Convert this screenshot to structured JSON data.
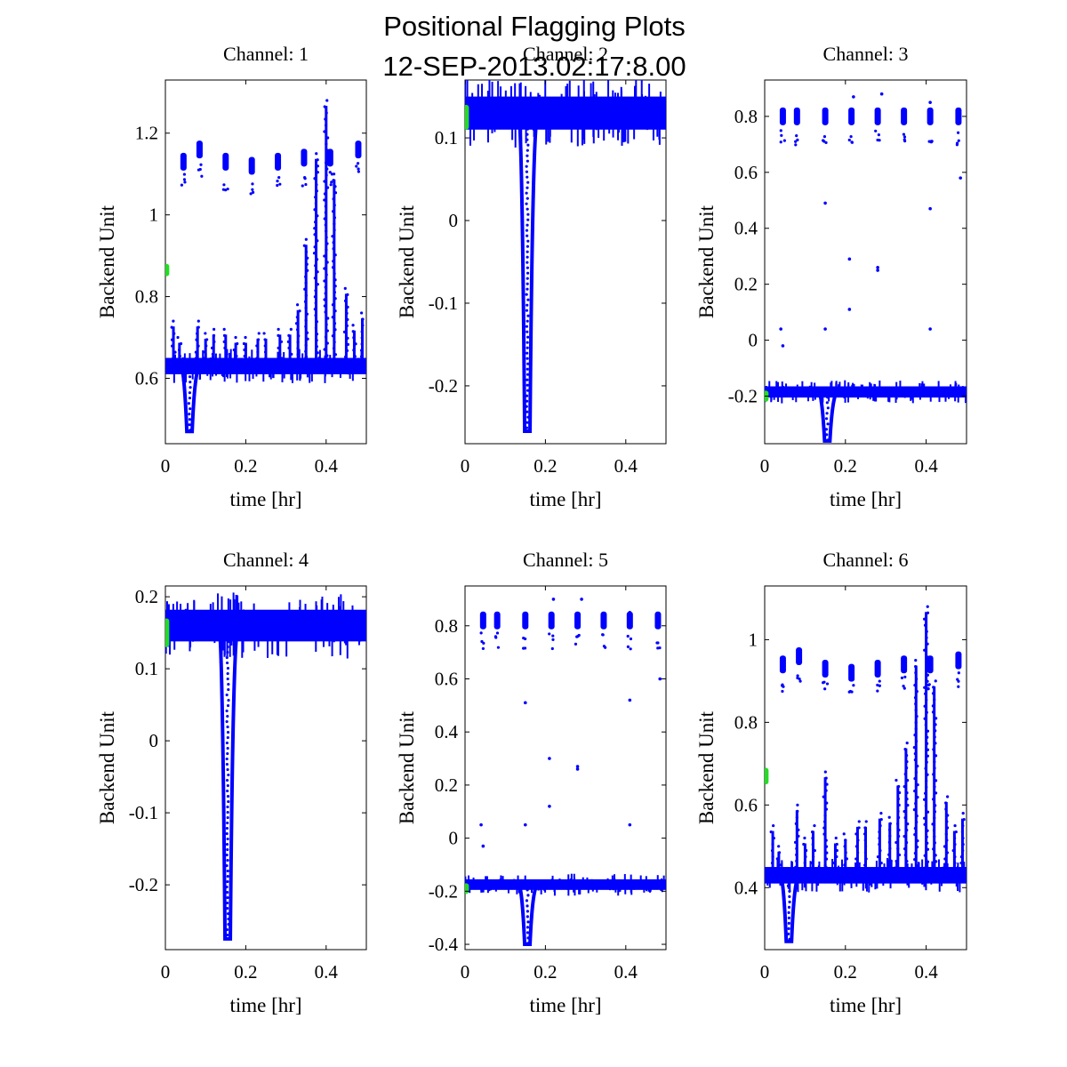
{
  "figure": {
    "title_line1": "Positional Flagging Plots",
    "title_line2": "12-SEP-2013.02:17:8.00"
  },
  "colors": {
    "data": "#0000ff",
    "flag": "#22dd22",
    "axes": "#000000",
    "background": "#ffffff"
  },
  "chart_data": [
    {
      "type": "scatter",
      "title": "Channel: 1",
      "xlabel": "time [hr]",
      "ylabel": "Backend Unit",
      "xlim": [
        0,
        0.5
      ],
      "ylim": [
        0.44,
        1.33
      ],
      "xticks": [
        0,
        0.2,
        0.4
      ],
      "xtick_labels": [
        "0",
        "0.2",
        "0.4"
      ],
      "yticks": [
        0.6,
        0.8,
        1.0,
        1.2
      ],
      "ytick_labels": [
        "0.6",
        "0.8",
        "1",
        "1.2"
      ],
      "baseline": 0.63,
      "baseline_spread": 0.02,
      "dip": {
        "x": 0.06,
        "y": 0.47
      },
      "upper_clusters": {
        "x": [
          0.045,
          0.085,
          0.15,
          0.215,
          0.28,
          0.345,
          0.41,
          0.48
        ],
        "y": [
          1.13,
          1.16,
          1.13,
          1.12,
          1.13,
          1.14,
          1.14,
          1.16
        ]
      },
      "spikes": [
        {
          "x": 0.02,
          "top": 0.74
        },
        {
          "x": 0.035,
          "top": 0.7
        },
        {
          "x": 0.08,
          "top": 0.74
        },
        {
          "x": 0.1,
          "top": 0.71
        },
        {
          "x": 0.12,
          "top": 0.72
        },
        {
          "x": 0.15,
          "top": 0.72
        },
        {
          "x": 0.175,
          "top": 0.7
        },
        {
          "x": 0.2,
          "top": 0.7
        },
        {
          "x": 0.23,
          "top": 0.71
        },
        {
          "x": 0.25,
          "top": 0.71
        },
        {
          "x": 0.285,
          "top": 0.72
        },
        {
          "x": 0.31,
          "top": 0.72
        },
        {
          "x": 0.33,
          "top": 0.78
        },
        {
          "x": 0.35,
          "top": 0.94
        },
        {
          "x": 0.375,
          "top": 1.15
        },
        {
          "x": 0.4,
          "top": 1.28
        },
        {
          "x": 0.42,
          "top": 1.1
        },
        {
          "x": 0.45,
          "top": 0.82
        },
        {
          "x": 0.47,
          "top": 0.73
        },
        {
          "x": 0.49,
          "top": 0.76
        }
      ],
      "flagged": {
        "x": 0.003,
        "y": [
          0.85,
          0.88
        ]
      }
    },
    {
      "type": "scatter",
      "title": "Channel: 2",
      "xlabel": "time [hr]",
      "ylabel": "Backend Unit",
      "xlim": [
        0,
        0.5
      ],
      "ylim": [
        -0.27,
        0.17
      ],
      "xticks": [
        0,
        0.2,
        0.4
      ],
      "xtick_labels": [
        "0",
        "0.2",
        "0.4"
      ],
      "yticks": [
        -0.2,
        -0.1,
        0,
        0.1
      ],
      "ytick_labels": [
        "-0.2",
        "-0.1",
        "0",
        "0.1"
      ],
      "baseline": 0.13,
      "baseline_spread": 0.02,
      "dip": {
        "x": 0.155,
        "y": -0.255
      },
      "upper_clusters": {
        "x": [],
        "y": []
      },
      "spikes": [],
      "flagged": {
        "x": 0.003,
        "y": [
          0.11,
          0.14
        ]
      }
    },
    {
      "type": "scatter",
      "title": "Channel: 3",
      "xlabel": "time [hr]",
      "ylabel": "Backend Unit",
      "xlim": [
        0,
        0.5
      ],
      "ylim": [
        -0.37,
        0.93
      ],
      "xticks": [
        0,
        0.2,
        0.4
      ],
      "xtick_labels": [
        "0",
        "0.2",
        "0.4"
      ],
      "yticks": [
        -0.2,
        0,
        0.2,
        0.4,
        0.6,
        0.8
      ],
      "ytick_labels": [
        "-0.2",
        "0",
        "0.2",
        "0.4",
        "0.6",
        "0.8"
      ],
      "baseline": -0.185,
      "baseline_spread": 0.02,
      "dip": {
        "x": 0.155,
        "y": -0.36
      },
      "upper_clusters": {
        "x": [
          0.045,
          0.08,
          0.15,
          0.215,
          0.28,
          0.345,
          0.41,
          0.48
        ],
        "y": [
          0.8,
          0.8,
          0.8,
          0.8,
          0.8,
          0.8,
          0.8,
          0.8
        ]
      },
      "spikes": [],
      "scatter_points": [
        [
          0.04,
          0.04
        ],
        [
          0.045,
          -0.02
        ],
        [
          0.15,
          0.49
        ],
        [
          0.15,
          0.04
        ],
        [
          0.21,
          0.29
        ],
        [
          0.21,
          0.11
        ],
        [
          0.28,
          0.25
        ],
        [
          0.28,
          0.26
        ],
        [
          0.41,
          0.47
        ],
        [
          0.41,
          0.04
        ],
        [
          0.485,
          0.58
        ],
        [
          0.22,
          0.87
        ],
        [
          0.29,
          0.88
        ],
        [
          0.41,
          0.85
        ]
      ],
      "flagged": {
        "x": 0.003,
        "y": [
          -0.22,
          -0.18
        ]
      }
    },
    {
      "type": "scatter",
      "title": "Channel: 4",
      "xlabel": "time [hr]",
      "ylabel": "Backend Unit",
      "xlim": [
        0,
        0.5
      ],
      "ylim": [
        -0.29,
        0.215
      ],
      "xticks": [
        0,
        0.2,
        0.4
      ],
      "xtick_labels": [
        "0",
        "0.2",
        "0.4"
      ],
      "yticks": [
        -0.2,
        -0.1,
        0,
        0.1,
        0.2
      ],
      "ytick_labels": [
        "-0.2",
        "-0.1",
        "0",
        "0.1",
        "0.2"
      ],
      "baseline": 0.16,
      "baseline_spread": 0.022,
      "dip": {
        "x": 0.155,
        "y": -0.275
      },
      "upper_clusters": {
        "x": [],
        "y": []
      },
      "spikes": [],
      "flagged": {
        "x": 0.003,
        "y": [
          0.13,
          0.17
        ]
      }
    },
    {
      "type": "scatter",
      "title": "Channel: 5",
      "xlabel": "time [hr]",
      "ylabel": "Backend Unit",
      "xlim": [
        0,
        0.5
      ],
      "ylim": [
        -0.42,
        0.95
      ],
      "xticks": [
        0,
        0.2,
        0.4
      ],
      "xtick_labels": [
        "0",
        "0.2",
        "0.4"
      ],
      "yticks": [
        -0.4,
        -0.2,
        0,
        0.2,
        0.4,
        0.6,
        0.8
      ],
      "ytick_labels": [
        "-0.4",
        "-0.2",
        "0",
        "0.2",
        "0.4",
        "0.6",
        "0.8"
      ],
      "baseline": -0.175,
      "baseline_spread": 0.02,
      "dip": {
        "x": 0.155,
        "y": -0.4
      },
      "upper_clusters": {
        "x": [
          0.045,
          0.08,
          0.15,
          0.215,
          0.28,
          0.345,
          0.41,
          0.48
        ],
        "y": [
          0.82,
          0.82,
          0.82,
          0.82,
          0.82,
          0.82,
          0.82,
          0.82
        ]
      },
      "spikes": [],
      "scatter_points": [
        [
          0.04,
          0.05
        ],
        [
          0.045,
          -0.03
        ],
        [
          0.15,
          0.51
        ],
        [
          0.15,
          0.05
        ],
        [
          0.21,
          0.3
        ],
        [
          0.21,
          0.12
        ],
        [
          0.28,
          0.27
        ],
        [
          0.28,
          0.26
        ],
        [
          0.41,
          0.52
        ],
        [
          0.41,
          0.05
        ],
        [
          0.485,
          0.6
        ],
        [
          0.22,
          0.9
        ],
        [
          0.29,
          0.9
        ],
        [
          0.41,
          0.85
        ]
      ],
      "flagged": {
        "x": 0.003,
        "y": [
          -0.21,
          -0.17
        ]
      }
    },
    {
      "type": "scatter",
      "title": "Channel: 6",
      "xlabel": "time [hr]",
      "ylabel": "Backend Unit",
      "xlim": [
        0,
        0.5
      ],
      "ylim": [
        0.25,
        1.13
      ],
      "xticks": [
        0,
        0.2,
        0.4
      ],
      "xtick_labels": [
        "0",
        "0.2",
        "0.4"
      ],
      "yticks": [
        0.4,
        0.6,
        0.8,
        1.0
      ],
      "ytick_labels": [
        "0.4",
        "0.6",
        "0.8",
        "1"
      ],
      "baseline": 0.43,
      "baseline_spread": 0.02,
      "dip": {
        "x": 0.06,
        "y": 0.27
      },
      "upper_clusters": {
        "x": [
          0.045,
          0.085,
          0.15,
          0.215,
          0.28,
          0.345,
          0.41,
          0.48
        ],
        "y": [
          0.94,
          0.96,
          0.93,
          0.92,
          0.93,
          0.94,
          0.94,
          0.95
        ]
      },
      "spikes": [
        {
          "x": 0.02,
          "top": 0.55
        },
        {
          "x": 0.035,
          "top": 0.5
        },
        {
          "x": 0.08,
          "top": 0.6
        },
        {
          "x": 0.1,
          "top": 0.52
        },
        {
          "x": 0.12,
          "top": 0.55
        },
        {
          "x": 0.15,
          "top": 0.68
        },
        {
          "x": 0.175,
          "top": 0.52
        },
        {
          "x": 0.2,
          "top": 0.53
        },
        {
          "x": 0.23,
          "top": 0.56
        },
        {
          "x": 0.25,
          "top": 0.56
        },
        {
          "x": 0.285,
          "top": 0.58
        },
        {
          "x": 0.31,
          "top": 0.57
        },
        {
          "x": 0.33,
          "top": 0.66
        },
        {
          "x": 0.35,
          "top": 0.75
        },
        {
          "x": 0.375,
          "top": 0.95
        },
        {
          "x": 0.4,
          "top": 1.08
        },
        {
          "x": 0.42,
          "top": 0.9
        },
        {
          "x": 0.45,
          "top": 0.62
        },
        {
          "x": 0.47,
          "top": 0.55
        },
        {
          "x": 0.49,
          "top": 0.58
        }
      ],
      "flagged": {
        "x": 0.003,
        "y": [
          0.65,
          0.69
        ]
      }
    }
  ]
}
